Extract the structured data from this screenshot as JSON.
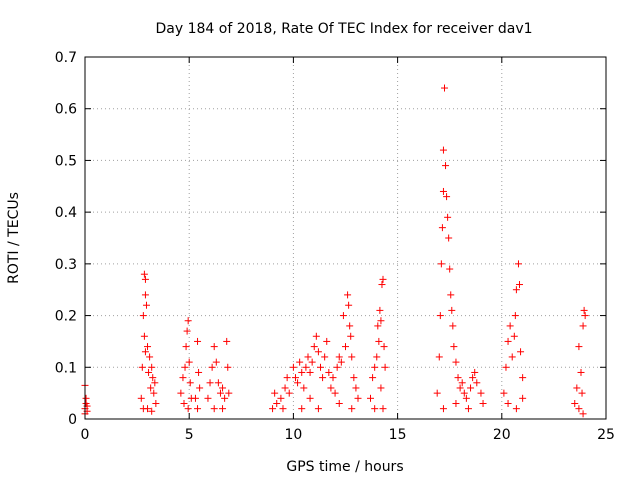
{
  "chart_data": {
    "type": "scatter",
    "title": "Day 184 of 2018, Rate Of TEC Index for receiver dav1",
    "xlabel": "GPS time / hours",
    "ylabel": "ROTI / TECUs",
    "xlim": [
      0,
      25
    ],
    "ylim": [
      0,
      0.7
    ],
    "xticks": [
      0,
      5,
      10,
      15,
      20,
      25
    ],
    "yticks": [
      0,
      0.1,
      0.2,
      0.3,
      0.4,
      0.5,
      0.6,
      0.7
    ],
    "ytick_labels": [
      "0",
      "0.1",
      "0.2",
      "0.3",
      "0.4",
      "0.5",
      "0.6",
      "0.7"
    ],
    "xtick_labels": [
      "0",
      "5",
      "10",
      "15",
      "20",
      "25"
    ],
    "grid": true,
    "marker": "+",
    "marker_color": "#ff0000",
    "series": [
      {
        "name": "dav1",
        "points": [
          [
            0.0,
            0.01
          ],
          [
            0.0,
            0.02
          ],
          [
            0.05,
            0.03
          ],
          [
            0.0,
            0.065
          ],
          [
            0.05,
            0.04
          ],
          [
            0.1,
            0.015
          ],
          [
            0.1,
            0.025
          ],
          [
            2.7,
            0.04
          ],
          [
            2.75,
            0.1
          ],
          [
            2.8,
            0.2
          ],
          [
            2.85,
            0.28
          ],
          [
            2.9,
            0.27
          ],
          [
            2.9,
            0.24
          ],
          [
            2.95,
            0.22
          ],
          [
            2.85,
            0.16
          ],
          [
            2.9,
            0.13
          ],
          [
            3.0,
            0.14
          ],
          [
            3.05,
            0.09
          ],
          [
            3.1,
            0.12
          ],
          [
            3.15,
            0.06
          ],
          [
            3.2,
            0.1
          ],
          [
            3.25,
            0.08
          ],
          [
            3.3,
            0.05
          ],
          [
            3.35,
            0.07
          ],
          [
            3.4,
            0.03
          ],
          [
            2.8,
            0.02
          ],
          [
            3.0,
            0.02
          ],
          [
            3.2,
            0.015
          ],
          [
            4.6,
            0.05
          ],
          [
            4.7,
            0.08
          ],
          [
            4.8,
            0.1
          ],
          [
            4.85,
            0.14
          ],
          [
            4.9,
            0.17
          ],
          [
            4.95,
            0.19
          ],
          [
            5.0,
            0.11
          ],
          [
            5.05,
            0.07
          ],
          [
            4.75,
            0.03
          ],
          [
            4.95,
            0.02
          ],
          [
            5.1,
            0.04
          ],
          [
            5.3,
            0.04
          ],
          [
            5.4,
            0.15
          ],
          [
            5.45,
            0.09
          ],
          [
            5.5,
            0.06
          ],
          [
            5.4,
            0.02
          ],
          [
            5.9,
            0.04
          ],
          [
            6.0,
            0.07
          ],
          [
            6.1,
            0.1
          ],
          [
            6.2,
            0.14
          ],
          [
            6.3,
            0.11
          ],
          [
            6.4,
            0.07
          ],
          [
            6.5,
            0.05
          ],
          [
            6.6,
            0.06
          ],
          [
            6.7,
            0.04
          ],
          [
            6.8,
            0.15
          ],
          [
            6.85,
            0.1
          ],
          [
            6.9,
            0.05
          ],
          [
            6.2,
            0.02
          ],
          [
            6.6,
            0.02
          ],
          [
            9.0,
            0.02
          ],
          [
            9.1,
            0.05
          ],
          [
            9.2,
            0.03
          ],
          [
            9.4,
            0.04
          ],
          [
            9.6,
            0.06
          ],
          [
            9.7,
            0.08
          ],
          [
            9.8,
            0.05
          ],
          [
            10.0,
            0.1
          ],
          [
            10.1,
            0.08
          ],
          [
            10.2,
            0.07
          ],
          [
            10.3,
            0.11
          ],
          [
            10.4,
            0.09
          ],
          [
            10.5,
            0.06
          ],
          [
            10.6,
            0.1
          ],
          [
            10.7,
            0.12
          ],
          [
            10.8,
            0.09
          ],
          [
            10.9,
            0.11
          ],
          [
            11.0,
            0.14
          ],
          [
            11.1,
            0.16
          ],
          [
            11.2,
            0.13
          ],
          [
            11.3,
            0.1
          ],
          [
            11.4,
            0.08
          ],
          [
            11.5,
            0.12
          ],
          [
            11.6,
            0.15
          ],
          [
            11.7,
            0.09
          ],
          [
            11.8,
            0.06
          ],
          [
            9.5,
            0.02
          ],
          [
            10.4,
            0.02
          ],
          [
            11.2,
            0.02
          ],
          [
            10.8,
            0.04
          ],
          [
            11.9,
            0.08
          ],
          [
            12.0,
            0.05
          ],
          [
            12.1,
            0.1
          ],
          [
            12.2,
            0.12
          ],
          [
            12.3,
            0.11
          ],
          [
            12.4,
            0.2
          ],
          [
            12.5,
            0.14
          ],
          [
            12.6,
            0.24
          ],
          [
            12.65,
            0.22
          ],
          [
            12.7,
            0.18
          ],
          [
            12.75,
            0.16
          ],
          [
            12.8,
            0.12
          ],
          [
            12.9,
            0.08
          ],
          [
            13.0,
            0.06
          ],
          [
            13.1,
            0.04
          ],
          [
            12.2,
            0.03
          ],
          [
            12.8,
            0.02
          ],
          [
            13.7,
            0.04
          ],
          [
            13.8,
            0.08
          ],
          [
            13.9,
            0.1
          ],
          [
            14.0,
            0.12
          ],
          [
            14.05,
            0.18
          ],
          [
            14.1,
            0.15
          ],
          [
            14.15,
            0.21
          ],
          [
            14.2,
            0.19
          ],
          [
            14.25,
            0.26
          ],
          [
            14.3,
            0.27
          ],
          [
            14.35,
            0.14
          ],
          [
            14.4,
            0.1
          ],
          [
            14.2,
            0.06
          ],
          [
            13.9,
            0.02
          ],
          [
            14.3,
            0.02
          ],
          [
            16.9,
            0.05
          ],
          [
            17.0,
            0.12
          ],
          [
            17.05,
            0.2
          ],
          [
            17.1,
            0.3
          ],
          [
            17.15,
            0.37
          ],
          [
            17.2,
            0.44
          ],
          [
            17.2,
            0.52
          ],
          [
            17.25,
            0.64
          ],
          [
            17.3,
            0.49
          ],
          [
            17.35,
            0.43
          ],
          [
            17.4,
            0.39
          ],
          [
            17.45,
            0.35
          ],
          [
            17.5,
            0.29
          ],
          [
            17.55,
            0.24
          ],
          [
            17.6,
            0.21
          ],
          [
            17.65,
            0.18
          ],
          [
            17.7,
            0.14
          ],
          [
            17.8,
            0.11
          ],
          [
            17.9,
            0.08
          ],
          [
            18.0,
            0.06
          ],
          [
            18.1,
            0.07
          ],
          [
            18.2,
            0.05
          ],
          [
            18.3,
            0.04
          ],
          [
            18.5,
            0.06
          ],
          [
            18.6,
            0.08
          ],
          [
            18.7,
            0.09
          ],
          [
            18.8,
            0.07
          ],
          [
            19.0,
            0.05
          ],
          [
            19.1,
            0.03
          ],
          [
            17.2,
            0.02
          ],
          [
            17.8,
            0.03
          ],
          [
            18.4,
            0.02
          ],
          [
            20.1,
            0.05
          ],
          [
            20.2,
            0.1
          ],
          [
            20.3,
            0.15
          ],
          [
            20.4,
            0.18
          ],
          [
            20.5,
            0.12
          ],
          [
            20.6,
            0.16
          ],
          [
            20.65,
            0.2
          ],
          [
            20.7,
            0.25
          ],
          [
            20.8,
            0.3
          ],
          [
            20.85,
            0.26
          ],
          [
            20.9,
            0.13
          ],
          [
            21.0,
            0.08
          ],
          [
            20.3,
            0.03
          ],
          [
            20.7,
            0.02
          ],
          [
            21.0,
            0.04
          ],
          [
            23.5,
            0.03
          ],
          [
            23.6,
            0.06
          ],
          [
            23.7,
            0.14
          ],
          [
            23.8,
            0.09
          ],
          [
            23.9,
            0.18
          ],
          [
            23.95,
            0.21
          ],
          [
            24.0,
            0.2
          ],
          [
            23.85,
            0.05
          ],
          [
            23.7,
            0.02
          ],
          [
            23.9,
            0.01
          ]
        ]
      }
    ]
  }
}
